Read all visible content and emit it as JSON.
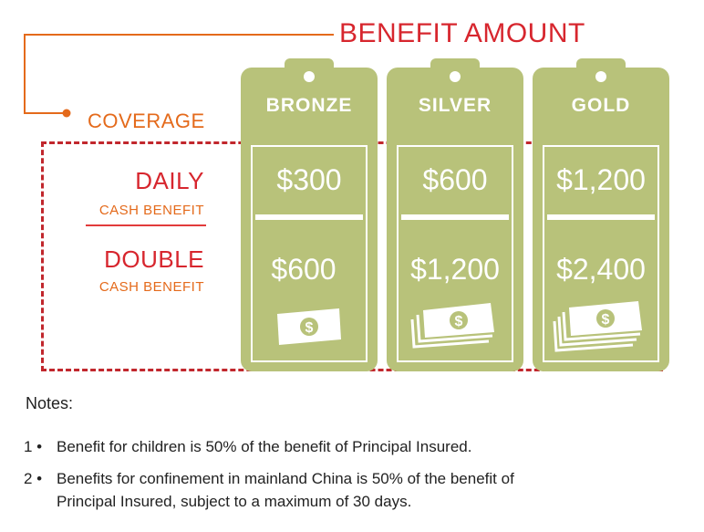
{
  "header": {
    "benefit_amount": "BENEFIT AMOUNT",
    "coverage": "COVERAGE"
  },
  "rows": {
    "daily_main": "DAILY",
    "daily_sub": "CASH BENEFIT",
    "double_main": "DOUBLE",
    "double_sub": "CASH BENEFIT"
  },
  "tiers": [
    {
      "name": "BRONZE",
      "daily": "$300",
      "double": "$600",
      "bill_count": 1
    },
    {
      "name": "SILVER",
      "daily": "$600",
      "double": "$1,200",
      "bill_count": 3
    },
    {
      "name": "GOLD",
      "daily": "$1,200",
      "double": "$2,400",
      "bill_count": 4
    }
  ],
  "notes": {
    "title": "Notes:",
    "items": [
      {
        "num": "1 •",
        "text": "Benefit for children is 50% of the benefit of Principal Insured."
      },
      {
        "num": "2 •",
        "text_line1": "Benefits for confinement in mainland China is 50% of the benefit of",
        "text_line2": "Principal Insured, subject to a maximum of 30 days."
      }
    ]
  },
  "colors": {
    "tag_green": "#b8c27a",
    "title_red": "#d7262e",
    "label_orange": "#e46a1b",
    "dashed_red": "#c1272d"
  },
  "icons": {
    "money": "dollar-bill-stack-icon"
  }
}
